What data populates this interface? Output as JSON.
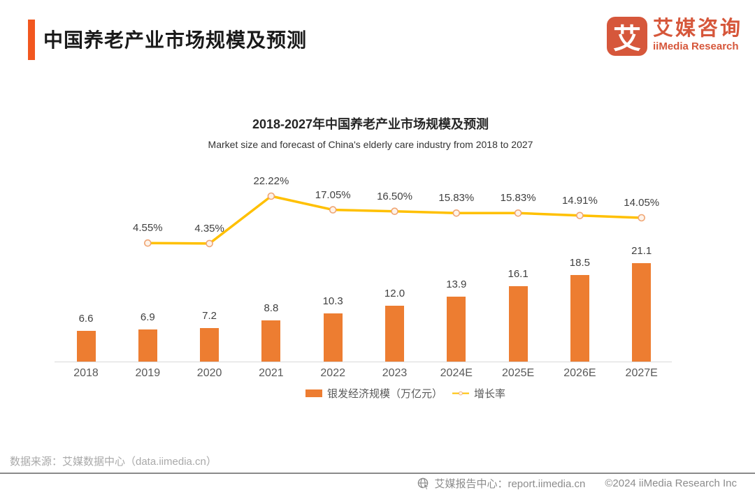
{
  "header": {
    "title": "中国养老产业市场规模及预测",
    "logo": {
      "glyph": "艾",
      "brand_cn": "艾媒咨询",
      "brand_en": "iiMedia Research"
    }
  },
  "chart_data": {
    "type": "bar+line",
    "title": "2018-2027年中国养老产业市场规模及预测",
    "subtitle": "Market size and forecast of China's elderly care industry from 2018 to 2027",
    "categories": [
      "2018",
      "2019",
      "2020",
      "2021",
      "2022",
      "2023",
      "2024E",
      "2025E",
      "2026E",
      "2027E"
    ],
    "series": [
      {
        "name": "银发经济规模（万亿元）",
        "type": "bar",
        "color": "#ED7D31",
        "values": [
          6.6,
          6.9,
          7.2,
          8.8,
          10.3,
          12.0,
          13.9,
          16.1,
          18.5,
          21.1
        ],
        "labels": [
          "6.6",
          "6.9",
          "7.2",
          "8.8",
          "10.3",
          "12.0",
          "13.9",
          "16.1",
          "18.5",
          "21.1"
        ]
      },
      {
        "name": "增长率",
        "type": "line",
        "color": "#FFC000",
        "marker_fill": "#FDF3EA",
        "marker_stroke": "#F0A573",
        "values": [
          null,
          4.55,
          4.35,
          22.22,
          17.05,
          16.5,
          15.83,
          15.83,
          14.91,
          14.05
        ],
        "labels": [
          null,
          "4.55%",
          "4.35%",
          "22.22%",
          "17.05%",
          "16.50%",
          "15.83%",
          "15.83%",
          "14.91%",
          "14.05%"
        ]
      }
    ],
    "xlabel": "",
    "ylabel": "",
    "grid": false,
    "legend_position": "bottom",
    "axis_line_color": "#D9D9D9"
  },
  "footer": {
    "source": "数据来源：艾媒数据中心（data.iimedia.cn）",
    "report_center": "艾媒报告中心：report.iimedia.cn",
    "copyright": "©2024  iiMedia Research Inc"
  },
  "colors": {
    "accent_bar": "#F2571F",
    "brand": "#D6573B",
    "bar": "#ED7D31",
    "line": "#FFC000"
  }
}
